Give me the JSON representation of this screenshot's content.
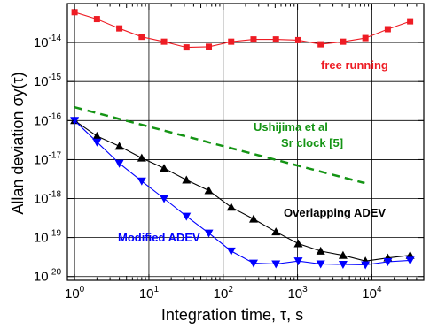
{
  "chart_data": {
    "type": "line",
    "x_scale": "log",
    "y_scale": "log",
    "xlim": [
      0.8,
      50000
    ],
    "ylim": [
      8e-21,
      1e-13
    ],
    "grid": true,
    "xlabel": "Integration time, τ, s",
    "ylabel": "Allan deviation σy(τ)",
    "x_ticks": [
      {
        "base": "10",
        "exp": "0"
      },
      {
        "base": "10",
        "exp": "1"
      },
      {
        "base": "10",
        "exp": "2"
      },
      {
        "base": "10",
        "exp": "3"
      },
      {
        "base": "10",
        "exp": "4"
      }
    ],
    "y_ticks": [
      {
        "base": "10",
        "exp": "-14"
      },
      {
        "base": "10",
        "exp": "-15"
      },
      {
        "base": "10",
        "exp": "-16"
      },
      {
        "base": "10",
        "exp": "-17"
      },
      {
        "base": "10",
        "exp": "-18"
      },
      {
        "base": "10",
        "exp": "-19"
      },
      {
        "base": "10",
        "exp": "-20"
      }
    ],
    "series": [
      {
        "name": "free running",
        "color": "#ee1c24",
        "marker": "square",
        "x": [
          1,
          2,
          4,
          8,
          16,
          32,
          64,
          128,
          256,
          512,
          1024,
          2048,
          4096,
          8192,
          16384,
          32768
        ],
        "y": [
          6e-14,
          4e-14,
          2.3e-14,
          1.4e-14,
          1.05e-14,
          7.5e-15,
          7.8e-15,
          1.05e-14,
          1.2e-14,
          1.2e-14,
          1.15e-14,
          9e-15,
          1.05e-14,
          1.3e-14,
          2.2e-14,
          3.5e-14
        ]
      },
      {
        "name": "Overlapping ADEV",
        "color": "#000000",
        "marker": "triangle-up",
        "x": [
          1,
          2,
          4,
          8,
          16,
          32,
          64,
          128,
          256,
          512,
          1024,
          2048,
          4096,
          8192,
          16384,
          32768
        ],
        "y": [
          1e-16,
          4e-17,
          2.2e-17,
          1.1e-17,
          6e-18,
          3e-18,
          1.6e-18,
          6e-19,
          3e-19,
          1.4e-19,
          7e-20,
          4.5e-20,
          3.5e-20,
          2.5e-20,
          3e-20,
          3.5e-20
        ]
      },
      {
        "name": "Modified ADEV",
        "color": "#0000ff",
        "marker": "triangle-down",
        "x": [
          1,
          2,
          4,
          8,
          16,
          32,
          64,
          128,
          256,
          512,
          1024,
          2048,
          4096,
          8192,
          16384,
          32768
        ],
        "y": [
          1e-16,
          2.8e-17,
          8e-18,
          2.8e-18,
          1e-18,
          3.5e-19,
          1.3e-19,
          4.5e-20,
          2.2e-20,
          2.1e-20,
          2.5e-20,
          2.1e-20,
          2.05e-20,
          2e-20,
          2.4e-20,
          2.6e-20
        ]
      },
      {
        "name": "Ushijima et al Sr clock [5]",
        "color": "#149414",
        "style": "dashed",
        "x": [
          1,
          8000
        ],
        "y": [
          2.2e-16,
          2.5e-18
        ]
      }
    ],
    "annotations": {
      "free_running": "free running",
      "ushijima_line1": "Ushijima et al",
      "ushijima_line2": "Sr clock [5]",
      "overlapping": "Overlapping ADEV",
      "modified": "Modified ADEV"
    }
  }
}
